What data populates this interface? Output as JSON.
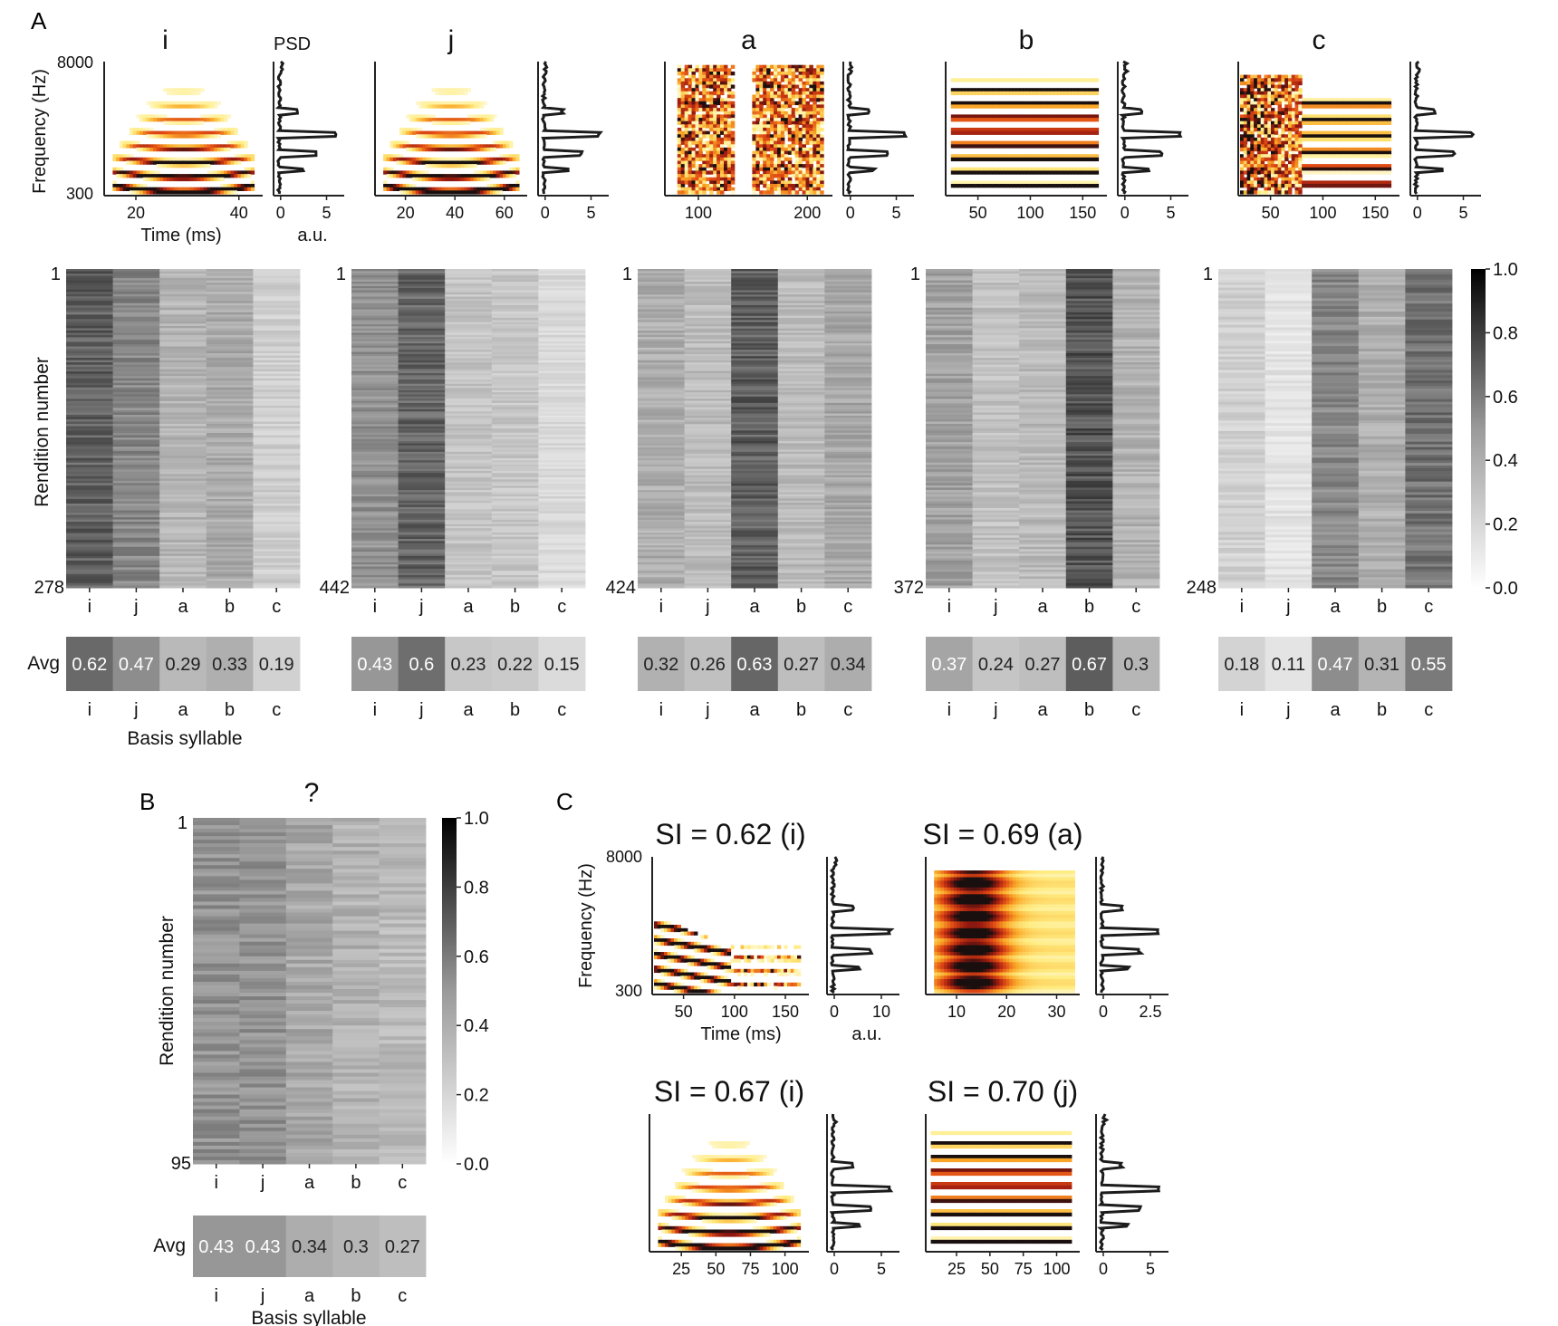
{
  "figure": {
    "panel_labels": [
      "A",
      "B",
      "C"
    ],
    "colormap": "gray_r",
    "colorbar_ticks": [
      "0.0",
      "0.2",
      "0.4",
      "0.6",
      "0.8",
      "1.0"
    ]
  },
  "chart_data": [
    {
      "type": "spectrogram_with_psd",
      "panel": "A",
      "ylabel": "Frequency (Hz)",
      "xlabel": "Time (ms)",
      "psd_header": "PSD",
      "psd_xlabel": "a.u.",
      "y_ticks": [
        "8000",
        "300"
      ],
      "syllables": [
        {
          "title": "i",
          "x_ticks": [
            "20",
            "40"
          ],
          "psd_ticks": [
            "0",
            "5"
          ],
          "style": "harmonic-arch"
        },
        {
          "title": "j",
          "x_ticks": [
            "20",
            "40",
            "60"
          ],
          "psd_ticks": [
            "0",
            "5"
          ],
          "style": "harmonic-arch"
        },
        {
          "title": "a",
          "x_ticks": [
            "100",
            "200"
          ],
          "psd_ticks": [
            "0",
            "5"
          ],
          "style": "noisy"
        },
        {
          "title": "b",
          "x_ticks": [
            "50",
            "100",
            "150"
          ],
          "psd_ticks": [
            "0",
            "5"
          ],
          "style": "flat-harmonic"
        },
        {
          "title": "c",
          "x_ticks": [
            "50",
            "100",
            "150"
          ],
          "psd_ticks": [
            "0",
            "5"
          ],
          "style": "mixed"
        }
      ]
    },
    {
      "type": "heatmap",
      "panel": "A",
      "ylabel": "Rendition number",
      "xlabel": "Basis syllable",
      "categories": [
        "i",
        "j",
        "a",
        "b",
        "c"
      ],
      "avg_label": "Avg",
      "vlim": [
        0,
        1
      ],
      "maps": [
        {
          "first": "1",
          "last": "278",
          "avg": [
            0.62,
            0.47,
            0.29,
            0.33,
            0.19
          ],
          "avg_labels": [
            "0.62",
            "0.47",
            "0.29",
            "0.33",
            "0.19"
          ]
        },
        {
          "first": "1",
          "last": "442",
          "avg": [
            0.43,
            0.6,
            0.23,
            0.22,
            0.15
          ],
          "avg_labels": [
            "0.43",
            "0.6",
            "0.23",
            "0.22",
            "0.15"
          ]
        },
        {
          "first": "1",
          "last": "424",
          "avg": [
            0.32,
            0.26,
            0.63,
            0.27,
            0.34
          ],
          "avg_labels": [
            "0.32",
            "0.26",
            "0.63",
            "0.27",
            "0.34"
          ]
        },
        {
          "first": "1",
          "last": "372",
          "avg": [
            0.37,
            0.24,
            0.27,
            0.67,
            0.3
          ],
          "avg_labels": [
            "0.37",
            "0.24",
            "0.27",
            "0.67",
            "0.3"
          ]
        },
        {
          "first": "1",
          "last": "248",
          "avg": [
            0.18,
            0.11,
            0.47,
            0.31,
            0.55
          ],
          "avg_labels": [
            "0.18",
            "0.11",
            "0.47",
            "0.31",
            "0.55"
          ]
        }
      ]
    },
    {
      "type": "heatmap",
      "panel": "B",
      "title": "?",
      "ylabel": "Rendition number",
      "xlabel": "Basis syllable",
      "categories": [
        "i",
        "j",
        "a",
        "b",
        "c"
      ],
      "avg_label": "Avg",
      "vlim": [
        0,
        1
      ],
      "first": "1",
      "last": "95",
      "avg": [
        0.43,
        0.43,
        0.34,
        0.3,
        0.27
      ],
      "avg_labels": [
        "0.43",
        "0.43",
        "0.34",
        "0.3",
        "0.27"
      ]
    },
    {
      "type": "spectrogram_with_psd",
      "panel": "C",
      "ylabel": "Frequency (Hz)",
      "xlabel": "Time (ms)",
      "psd_xlabel": "a.u.",
      "y_ticks": [
        "8000",
        "300"
      ],
      "examples": [
        {
          "title": "SI = 0.62 (i)",
          "x_ticks": [
            "50",
            "100",
            "150"
          ],
          "psd_ticks": [
            "0",
            "10"
          ],
          "style": "sparse"
        },
        {
          "title": "SI = 0.69 (a)",
          "x_ticks": [
            "10",
            "20",
            "30"
          ],
          "psd_ticks": [
            "0",
            "2.5"
          ],
          "style": "blocky"
        },
        {
          "title": "SI = 0.67 (i)",
          "x_ticks": [
            "25",
            "50",
            "75",
            "100"
          ],
          "psd_ticks": [
            "0",
            "5"
          ],
          "style": "harmonic-arch"
        },
        {
          "title": "SI = 0.70 (j)",
          "x_ticks": [
            "25",
            "50",
            "75",
            "100"
          ],
          "psd_ticks": [
            "0",
            "5"
          ],
          "style": "flat-harmonic"
        }
      ]
    }
  ]
}
